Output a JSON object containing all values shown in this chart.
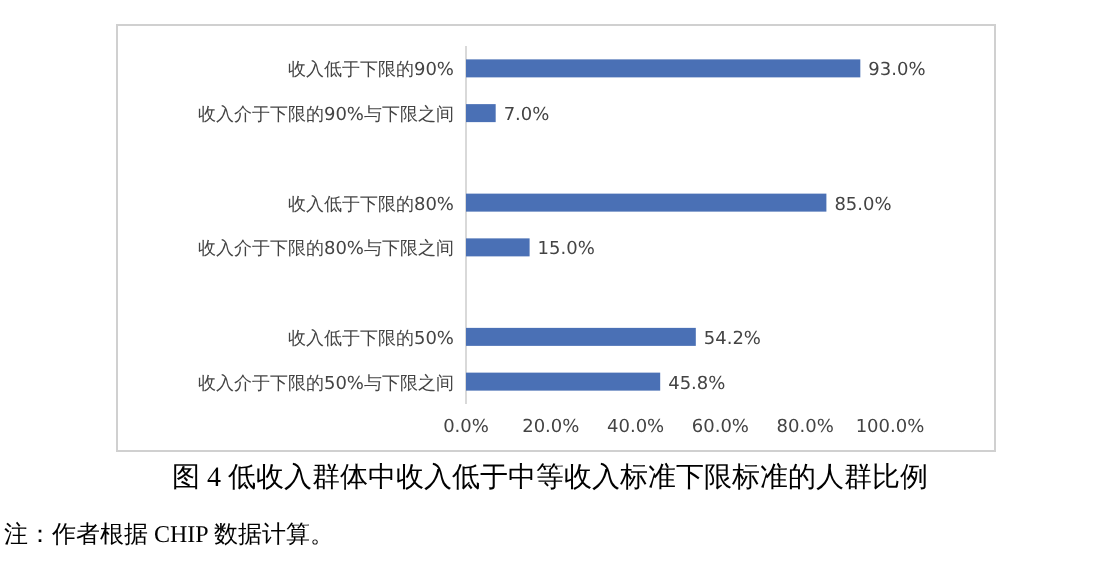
{
  "chart_data": {
    "type": "bar",
    "orientation": "horizontal",
    "title": "图 4  低收入群体中收入低于中等收入标准下限标准的人群比例",
    "annotations": [
      "注：作者根据 CHIP 数据计算。"
    ],
    "categories": [
      "收入低于下限的90%",
      "收入介于下限的90%与下限之间",
      null,
      "收入低于下限的80%",
      "收入介于下限的80%与下限之间",
      null,
      "收入低于下限的50%",
      "收入介于下限的50%与下限之间"
    ],
    "values": [
      93.0,
      7.0,
      null,
      85.0,
      15.0,
      null,
      54.2,
      45.8
    ],
    "value_labels": [
      "93.0%",
      "7.0%",
      null,
      "85.0%",
      "15.0%",
      null,
      "54.2%",
      "45.8%"
    ],
    "color": "#4a70b5",
    "xlim": [
      0,
      100
    ],
    "xticks": [
      {
        "value": 0,
        "label": "0.0%"
      },
      {
        "value": 20,
        "label": "20.0%"
      },
      {
        "value": 40,
        "label": "40.0%"
      },
      {
        "value": 60,
        "label": "60.0%"
      },
      {
        "value": 80,
        "label": "80.0%"
      },
      {
        "value": 100,
        "label": "100.0%"
      }
    ]
  }
}
